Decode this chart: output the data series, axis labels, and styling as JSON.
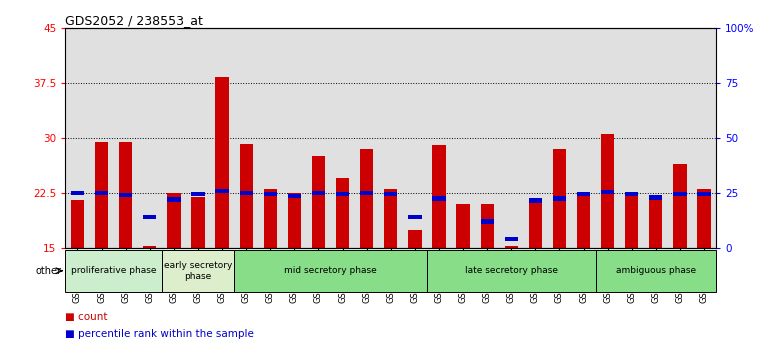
{
  "title": "GDS2052 / 238553_at",
  "samples": [
    "GSM109814",
    "GSM109815",
    "GSM109816",
    "GSM109817",
    "GSM109820",
    "GSM109821",
    "GSM109822",
    "GSM109824",
    "GSM109825",
    "GSM109826",
    "GSM109827",
    "GSM109828",
    "GSM109829",
    "GSM109830",
    "GSM109831",
    "GSM109834",
    "GSM109835",
    "GSM109836",
    "GSM109837",
    "GSM109838",
    "GSM109839",
    "GSM109818",
    "GSM109819",
    "GSM109823",
    "GSM109832",
    "GSM109833",
    "GSM109840"
  ],
  "count_values": [
    21.5,
    29.5,
    29.5,
    15.3,
    22.5,
    22.0,
    38.3,
    29.2,
    23.0,
    22.5,
    27.5,
    24.5,
    28.5,
    23.0,
    17.5,
    29.0,
    21.0,
    21.0,
    15.3,
    21.5,
    28.5,
    22.5,
    30.5,
    22.5,
    22.0,
    26.5,
    23.0
  ],
  "percentile_values": [
    25.0,
    25.0,
    24.0,
    14.0,
    22.0,
    24.5,
    26.0,
    25.0,
    24.5,
    23.5,
    25.0,
    24.5,
    25.0,
    24.5,
    14.0,
    22.5,
    0.0,
    12.0,
    4.0,
    21.5,
    22.5,
    24.5,
    25.5,
    24.5,
    23.0,
    24.5,
    24.5
  ],
  "count_color": "#cc0000",
  "percentile_color": "#0000cc",
  "ylim_left": [
    15,
    45
  ],
  "ylim_right": [
    0,
    100
  ],
  "yticks_left": [
    15,
    22.5,
    30,
    37.5,
    45
  ],
  "yticks_right": [
    0,
    25,
    50,
    75,
    100
  ],
  "ytick_labels_left": [
    "15",
    "22.5",
    "30",
    "37.5",
    "45"
  ],
  "ytick_labels_right": [
    "0",
    "25",
    "50",
    "75",
    "100%"
  ],
  "hlines": [
    22.5,
    30,
    37.5
  ],
  "phase_groups": [
    {
      "label": "proliferative phase",
      "start": 0,
      "end": 4,
      "color": "#cceecc"
    },
    {
      "label": "early secretory\nphase",
      "start": 4,
      "end": 7,
      "color": "#ddeecc"
    },
    {
      "label": "mid secretory phase",
      "start": 7,
      "end": 15,
      "color": "#88dd88"
    },
    {
      "label": "late secretory phase",
      "start": 15,
      "end": 22,
      "color": "#88dd88"
    },
    {
      "label": "ambiguous phase",
      "start": 22,
      "end": 27,
      "color": "#88dd88"
    }
  ],
  "other_label": "other",
  "bar_width": 0.55,
  "bg_color": "#e0e0e0"
}
